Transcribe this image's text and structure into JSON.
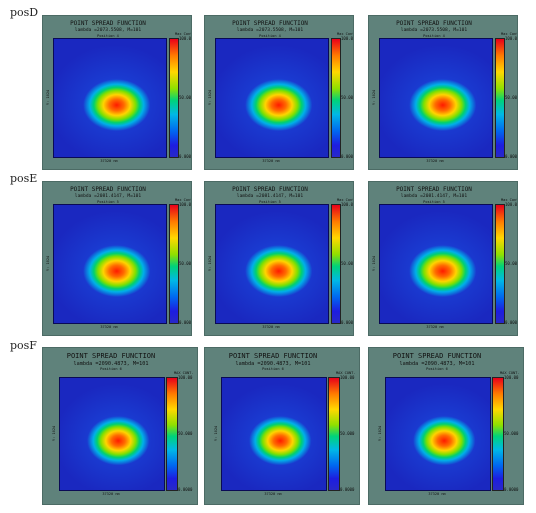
{
  "rows": [
    {
      "label": "posD",
      "panels": [
        {
          "title": "POINT SPREAD FUNCTION",
          "subtitle": "lambda =2073.5508, M=101",
          "position": "Position 4",
          "colorbar_label": "Max Cont.",
          "ticks": [
            "100.00",
            "50.000",
            "0.0000"
          ],
          "ylabel": "Y: 1024",
          "xlabel": "37320 nm"
        },
        {
          "title": "POINT SPREAD FUNCTION",
          "subtitle": "lambda =2073.5508, M=101",
          "position": "Position 4",
          "colorbar_label": "Max Cont.",
          "ticks": [
            "100.00",
            "50.000",
            "0.0000"
          ],
          "ylabel": "Y: 1024",
          "xlabel": "37320 nm"
        },
        {
          "title": "POINT SPREAD FUNCTION",
          "subtitle": "lambda =2073.5508, M=101",
          "position": "Position 4",
          "colorbar_label": "Max Cont.",
          "ticks": [
            "100.00",
            "50.000",
            "0.0000"
          ],
          "ylabel": "Y: 1024",
          "xlabel": "37320 nm"
        }
      ]
    },
    {
      "label": "posE",
      "panels": [
        {
          "title": "POINT SPREAD FUNCTION",
          "subtitle": "lambda =2081.4147, M=101",
          "position": "Position 5",
          "colorbar_label": "Max Cont.",
          "ticks": [
            "100.00",
            "50.000",
            "0.0000"
          ],
          "ylabel": "Y: 1024",
          "xlabel": "37320 nm"
        },
        {
          "title": "POINT SPREAD FUNCTION",
          "subtitle": "lambda =2081.4147, M=101",
          "position": "Position 5",
          "colorbar_label": "Max Cont.",
          "ticks": [
            "100.00",
            "50.000",
            "0.0000"
          ],
          "ylabel": "Y: 1024",
          "xlabel": "37320 nm"
        },
        {
          "title": "POINT SPREAD FUNCTION",
          "subtitle": "lambda =2081.4147, M=101",
          "position": "Position 5",
          "colorbar_label": "Max Cont.",
          "ticks": [
            "100.00",
            "50.000",
            "0.0000"
          ],
          "ylabel": "Y: 1024",
          "xlabel": "37320 nm"
        }
      ]
    },
    {
      "label": "posF",
      "panels": [
        {
          "title": "POINT SPREAD FUNCTION",
          "subtitle": "lambda =2090.4873, M=101",
          "position": "Position 6",
          "colorbar_label": "MAX CONT.",
          "ticks": [
            "100.00",
            "50.000",
            "0.0000"
          ],
          "ylabel": "Y: 1024",
          "xlabel": "37320 nm"
        },
        {
          "title": "POINT SPREAD FUNCTION",
          "subtitle": "lambda =2090.4873, M=101",
          "position": "Position 6",
          "colorbar_label": "MAX CONT.",
          "ticks": [
            "100.00",
            "50.000",
            "0.0000"
          ],
          "ylabel": "Y: 1024",
          "xlabel": "37320 nm"
        },
        {
          "title": "POINT SPREAD FUNCTION",
          "subtitle": "lambda =2090.4873, M=101",
          "position": "Position 6",
          "colorbar_label": "MAX CONT.",
          "ticks": [
            "100.00",
            "50.000",
            "0.0000"
          ],
          "ylabel": "Y: 1024",
          "xlabel": "37320 nm"
        }
      ]
    }
  ]
}
